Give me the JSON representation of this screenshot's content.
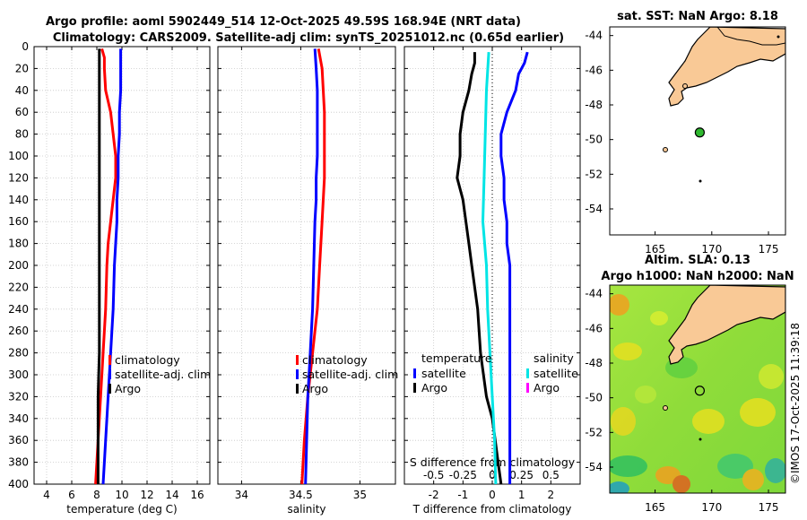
{
  "chart_data": [
    {
      "type": "line",
      "panel": "temperature",
      "title_line1": "Argo profile: aoml 5902449_514 12-Oct-2025 49.59S 168.94E (NRT data)",
      "title_line2": "Climatology: CARS2009. Satellite-adj clim: synTS_20251012.nc (0.65d earlier)",
      "xlabel": "temperature (deg C)",
      "xlim": [
        3,
        17
      ],
      "ylim": [
        0,
        400
      ],
      "xticks": [
        4,
        6,
        8,
        10,
        12,
        14,
        16
      ],
      "yticks": [
        0,
        20,
        40,
        60,
        80,
        100,
        120,
        140,
        160,
        180,
        200,
        220,
        240,
        260,
        280,
        300,
        320,
        340,
        360,
        380,
        400
      ],
      "legend": [
        "climatology",
        "satellite-adj. clim",
        "Argo"
      ],
      "series": [
        {
          "name": "climatology",
          "color": "#ff0000",
          "depth": [
            2,
            10,
            20,
            40,
            60,
            80,
            100,
            120,
            140,
            160,
            180,
            200,
            240,
            280,
            320,
            360,
            400
          ],
          "values": [
            8.4,
            8.6,
            8.6,
            8.7,
            9.1,
            9.3,
            9.5,
            9.5,
            9.3,
            9.1,
            8.9,
            8.8,
            8.7,
            8.5,
            8.3,
            8.1,
            7.9
          ]
        },
        {
          "name": "satellite-adj. clim",
          "color": "#0000ff",
          "depth": [
            2,
            10,
            20,
            40,
            60,
            80,
            100,
            120,
            140,
            160,
            180,
            200,
            240,
            280,
            320,
            360,
            400
          ],
          "values": [
            9.9,
            9.9,
            9.9,
            9.9,
            9.8,
            9.8,
            9.7,
            9.7,
            9.6,
            9.6,
            9.5,
            9.4,
            9.3,
            9.1,
            8.9,
            8.7,
            8.5
          ]
        },
        {
          "name": "Argo",
          "color": "#000000",
          "depth": [
            2,
            10,
            20,
            40,
            60,
            80,
            100,
            120,
            140,
            160,
            180,
            200,
            240,
            280,
            320,
            360,
            400
          ],
          "values": [
            8.2,
            8.2,
            8.2,
            8.2,
            8.2,
            8.2,
            8.2,
            8.2,
            8.2,
            8.2,
            8.2,
            8.2,
            8.2,
            8.2,
            8.1,
            8.1,
            8.1
          ]
        }
      ]
    },
    {
      "type": "line",
      "panel": "salinity",
      "xlabel": "salinity",
      "xlim": [
        33.8,
        35.3
      ],
      "ylim": [
        0,
        400
      ],
      "xticks": [
        34,
        34.5,
        35
      ],
      "legend": [
        "climatology",
        "satellite-adj. clim",
        "Argo"
      ],
      "series": [
        {
          "name": "climatology",
          "color": "#ff0000",
          "depth": [
            2,
            20,
            40,
            60,
            80,
            100,
            120,
            140,
            160,
            200,
            240,
            280,
            320,
            360,
            400
          ],
          "values": [
            34.65,
            34.68,
            34.69,
            34.7,
            34.7,
            34.7,
            34.7,
            34.69,
            34.68,
            34.66,
            34.64,
            34.6,
            34.56,
            34.53,
            34.51
          ]
        },
        {
          "name": "satellite-adj. clim",
          "color": "#0000ff",
          "depth": [
            2,
            20,
            40,
            60,
            80,
            100,
            120,
            140,
            160,
            200,
            240,
            280,
            320,
            360,
            400
          ],
          "values": [
            34.62,
            34.63,
            34.64,
            34.64,
            34.64,
            34.64,
            34.63,
            34.63,
            34.62,
            34.61,
            34.6,
            34.58,
            34.56,
            34.55,
            34.54
          ]
        },
        {
          "name": "Argo",
          "color": "#000000",
          "depth": [],
          "values": []
        }
      ]
    },
    {
      "type": "line",
      "panel": "differences",
      "xlabel": "T difference from climatology",
      "xlabel_top": "S difference from climatology",
      "xlim": [
        -3,
        3
      ],
      "ylim": [
        0,
        400
      ],
      "xticks": [
        -2,
        -1,
        0,
        1,
        2
      ],
      "xticks_top": [
        -0.5,
        -0.25,
        0,
        0.25,
        0.5
      ],
      "xticks_top_labels": [
        "-0.5",
        "-0.25",
        "0",
        "0.25",
        "0.5"
      ],
      "legend_temperature": {
        "heading": "temperature",
        "items": [
          "satellite",
          "Argo"
        ]
      },
      "legend_salinity": {
        "heading": "salinity",
        "items": [
          "satellite",
          "Argo"
        ]
      },
      "series": [
        {
          "name": "T satellite",
          "color": "#0000ff",
          "depth": [
            5,
            15,
            25,
            40,
            60,
            80,
            100,
            120,
            140,
            160,
            180,
            200,
            240,
            280,
            320,
            360,
            400
          ],
          "values": [
            1.2,
            1.1,
            0.9,
            0.8,
            0.5,
            0.3,
            0.3,
            0.4,
            0.4,
            0.5,
            0.5,
            0.6,
            0.6,
            0.6,
            0.6,
            0.6,
            0.6
          ]
        },
        {
          "name": "T Argo",
          "color": "#000000",
          "depth": [
            5,
            15,
            25,
            40,
            60,
            80,
            100,
            120,
            140,
            160,
            180,
            200,
            240,
            280,
            320,
            340,
            360,
            380,
            400
          ],
          "values": [
            -0.6,
            -0.6,
            -0.7,
            -0.8,
            -1.0,
            -1.1,
            -1.1,
            -1.2,
            -1.0,
            -0.9,
            -0.8,
            -0.7,
            -0.5,
            -0.4,
            -0.2,
            0.0,
            0.1,
            0.2,
            0.3
          ]
        },
        {
          "name": "S satellite",
          "color": "#00e5e5",
          "depth": [
            5,
            40,
            80,
            120,
            160,
            200,
            240,
            280,
            320,
            360,
            400
          ],
          "values": [
            -0.03,
            -0.05,
            -0.06,
            -0.07,
            -0.08,
            -0.05,
            -0.04,
            -0.02,
            0.0,
            0.02,
            0.03
          ]
        }
      ]
    },
    {
      "type": "scatter",
      "panel": "sst_map",
      "title": "sat. SST: NaN Argo: 8.18",
      "xlim": [
        161,
        176.5
      ],
      "ylim": [
        -55.5,
        -43.5
      ],
      "xticks": [
        165,
        170,
        175
      ],
      "yticks": [
        -44,
        -46,
        -48,
        -50,
        -52,
        -54
      ],
      "points": [
        {
          "lon": 168.94,
          "lat": -49.59,
          "label": "Argo profile"
        }
      ]
    },
    {
      "type": "heatmap",
      "panel": "sla_map",
      "title_line1": "Altim. SLA: 0.13",
      "title_line2": "Argo h1000: NaN h2000: NaN",
      "xlim": [
        161,
        176.5
      ],
      "ylim": [
        -55.5,
        -43.5
      ],
      "xticks": [
        165,
        170,
        175
      ],
      "yticks": [
        -44,
        -46,
        -48,
        -50,
        -52,
        -54
      ],
      "points": [
        {
          "lon": 168.94,
          "lat": -49.59,
          "label": "Argo profile"
        }
      ]
    }
  ],
  "watermark": "©IMOS 17-Oct-2025 11:39:18"
}
